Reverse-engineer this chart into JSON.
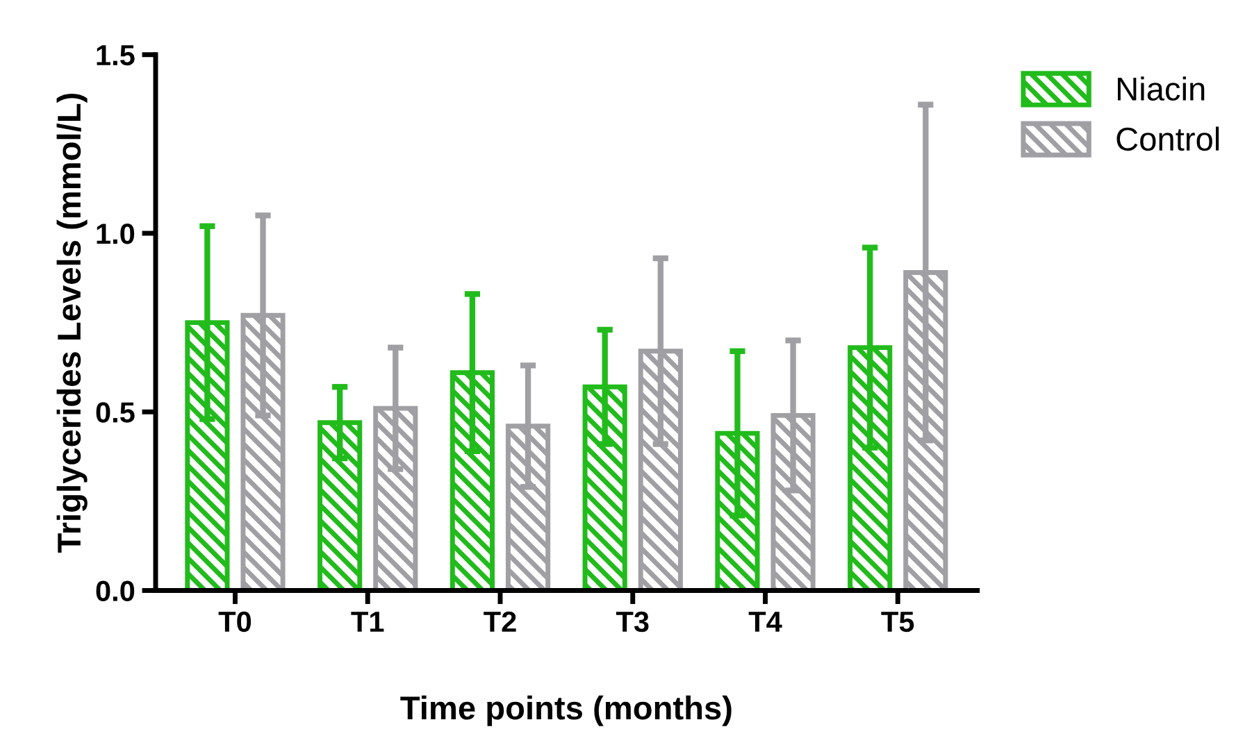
{
  "chart_data": {
    "type": "bar",
    "xlabel": "Time points (months)",
    "ylabel": "Triglycerides Levels (mmol/L)",
    "categories": [
      "T0",
      "T1",
      "T2",
      "T3",
      "T4",
      "T5"
    ],
    "series": [
      {
        "name": "Niacin",
        "color": "#22bb1c",
        "values": [
          0.75,
          0.47,
          0.61,
          0.57,
          0.44,
          0.68
        ],
        "errors": [
          0.27,
          0.1,
          0.22,
          0.16,
          0.23,
          0.28
        ]
      },
      {
        "name": "Control",
        "color": "#a0a0a4",
        "values": [
          0.77,
          0.51,
          0.46,
          0.67,
          0.49,
          0.89
        ],
        "errors": [
          0.28,
          0.17,
          0.17,
          0.26,
          0.21,
          0.47
        ]
      }
    ],
    "ylim": [
      0,
      1.5
    ],
    "yticks": [
      {
        "value": 0,
        "label": "0.0"
      },
      {
        "value": 0.5,
        "label": "0.5"
      },
      {
        "value": 1,
        "label": "1.0"
      },
      {
        "value": 1.5,
        "label": "1.5"
      }
    ],
    "grid": false,
    "legend": "top right"
  }
}
